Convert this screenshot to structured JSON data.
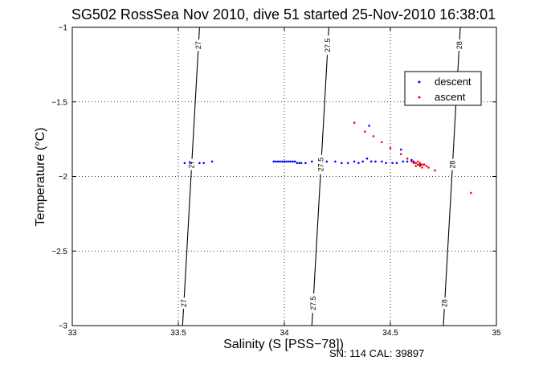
{
  "chart_data": {
    "type": "scatter",
    "title": "SG502 RossSea Nov 2010, dive 51 started 25-Nov-2010 16:38:01",
    "xlabel": "Salinity (S [PSS−78])",
    "ylabel": "Temperature (°C)",
    "xlim": [
      33,
      35
    ],
    "ylim": [
      -3,
      -1
    ],
    "xticks": [
      33,
      33.5,
      34,
      34.5,
      35
    ],
    "yticks": [
      -3,
      -2.5,
      -2,
      -1.5,
      -1
    ],
    "xtick_labels": [
      "33",
      "33.5",
      "34",
      "34.5",
      "35"
    ],
    "ytick_labels": [
      "−3",
      "−2.5",
      "−2",
      "−1.5",
      "−1"
    ],
    "grid": true,
    "legend_position": "top-right",
    "note": "SN: 114  CAL: 39897",
    "contours": [
      {
        "label": "27",
        "points": [
          [
            33.52,
            -3
          ],
          [
            33.54,
            -2.5
          ],
          [
            33.56,
            -2
          ],
          [
            33.58,
            -1.5
          ],
          [
            33.6,
            -1
          ]
        ]
      },
      {
        "label": "27.5",
        "points": [
          [
            34.13,
            -3
          ],
          [
            34.15,
            -2.5
          ],
          [
            34.17,
            -2
          ],
          [
            34.19,
            -1.5
          ],
          [
            34.21,
            -1
          ]
        ]
      },
      {
        "label": "28",
        "points": [
          [
            34.75,
            -3
          ],
          [
            34.77,
            -2.5
          ],
          [
            34.79,
            -2
          ],
          [
            34.81,
            -1.5
          ],
          [
            34.83,
            -1
          ]
        ]
      }
    ],
    "series": [
      {
        "name": "descent",
        "color": "#0000ff",
        "points": [
          [
            33.53,
            -1.91
          ],
          [
            33.56,
            -1.91
          ],
          [
            33.6,
            -1.91
          ],
          [
            33.62,
            -1.91
          ],
          [
            33.66,
            -1.9
          ],
          [
            33.95,
            -1.9
          ],
          [
            33.96,
            -1.9
          ],
          [
            33.97,
            -1.9
          ],
          [
            33.98,
            -1.9
          ],
          [
            33.99,
            -1.9
          ],
          [
            34.0,
            -1.9
          ],
          [
            34.01,
            -1.9
          ],
          [
            34.02,
            -1.9
          ],
          [
            34.03,
            -1.9
          ],
          [
            34.04,
            -1.9
          ],
          [
            34.05,
            -1.9
          ],
          [
            34.06,
            -1.91
          ],
          [
            34.07,
            -1.91
          ],
          [
            34.08,
            -1.91
          ],
          [
            34.1,
            -1.91
          ],
          [
            34.13,
            -1.9
          ],
          [
            34.2,
            -1.9
          ],
          [
            34.24,
            -1.9
          ],
          [
            34.27,
            -1.91
          ],
          [
            34.3,
            -1.91
          ],
          [
            34.33,
            -1.9
          ],
          [
            34.35,
            -1.91
          ],
          [
            34.37,
            -1.9
          ],
          [
            34.39,
            -1.88
          ],
          [
            34.41,
            -1.9
          ],
          [
            34.43,
            -1.9
          ],
          [
            34.46,
            -1.9
          ],
          [
            34.48,
            -1.91
          ],
          [
            34.51,
            -1.91
          ],
          [
            34.53,
            -1.91
          ],
          [
            34.56,
            -1.9
          ],
          [
            34.58,
            -1.9
          ],
          [
            34.6,
            -1.89
          ],
          [
            34.61,
            -1.9
          ],
          [
            34.62,
            -1.91
          ],
          [
            34.63,
            -1.92
          ],
          [
            34.64,
            -1.92
          ],
          [
            34.4,
            -1.66
          ],
          [
            34.55,
            -1.82
          ]
        ]
      },
      {
        "name": "ascent",
        "color": "#ff0000",
        "points": [
          [
            34.33,
            -1.64
          ],
          [
            34.38,
            -1.7
          ],
          [
            34.42,
            -1.73
          ],
          [
            34.46,
            -1.77
          ],
          [
            34.5,
            -1.81
          ],
          [
            34.55,
            -1.85
          ],
          [
            34.58,
            -1.88
          ],
          [
            34.6,
            -1.9
          ],
          [
            34.61,
            -1.91
          ],
          [
            34.62,
            -1.91
          ],
          [
            34.62,
            -1.93
          ],
          [
            34.63,
            -1.9
          ],
          [
            34.63,
            -1.92
          ],
          [
            34.64,
            -1.91
          ],
          [
            34.64,
            -1.93
          ],
          [
            34.65,
            -1.92
          ],
          [
            34.65,
            -1.94
          ],
          [
            34.66,
            -1.92
          ],
          [
            34.67,
            -1.93
          ],
          [
            34.68,
            -1.94
          ],
          [
            34.71,
            -1.96
          ],
          [
            34.88,
            -2.11
          ]
        ]
      }
    ]
  }
}
